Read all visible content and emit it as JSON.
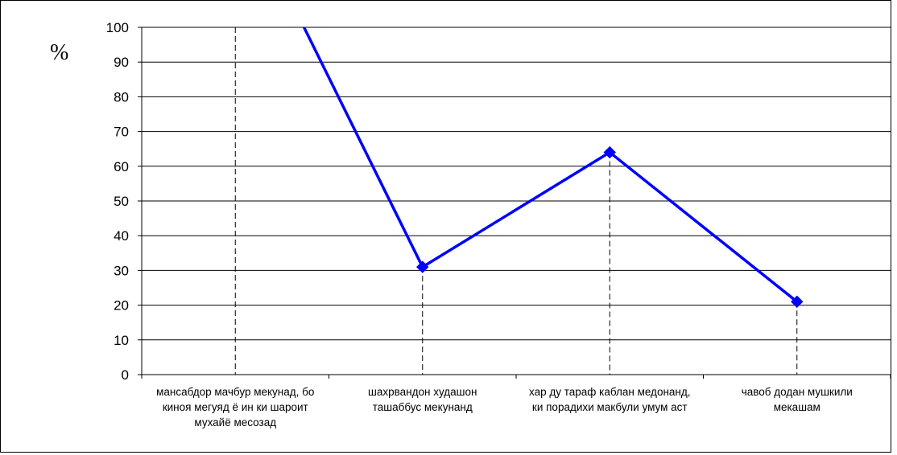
{
  "chart_data": {
    "type": "line",
    "title": "",
    "xlabel": "",
    "ylabel": "%",
    "ylim": [
      0,
      100
    ],
    "yticks": [
      0,
      10,
      20,
      30,
      40,
      50,
      60,
      70,
      80,
      90,
      100
    ],
    "grid": true,
    "categories": [
      "мансабдор мачбур мекунад, бо\nкиноя мегуяд ё ин ки шароит\nмухайё месозад",
      "шахрвандон худашон\nташаббус мекунанд",
      "хар ду тараф каблан медонанд,\nки порадихи макбули умум аст",
      "чавоб додан мушкили\nмекашам"
    ],
    "series": [
      {
        "values": [
          140,
          31,
          64,
          21
        ]
      }
    ],
    "colors": {
      "line": "#0000ff",
      "marker": "#0000ff",
      "grid": "#000000",
      "drop_lines": "#000000"
    }
  }
}
